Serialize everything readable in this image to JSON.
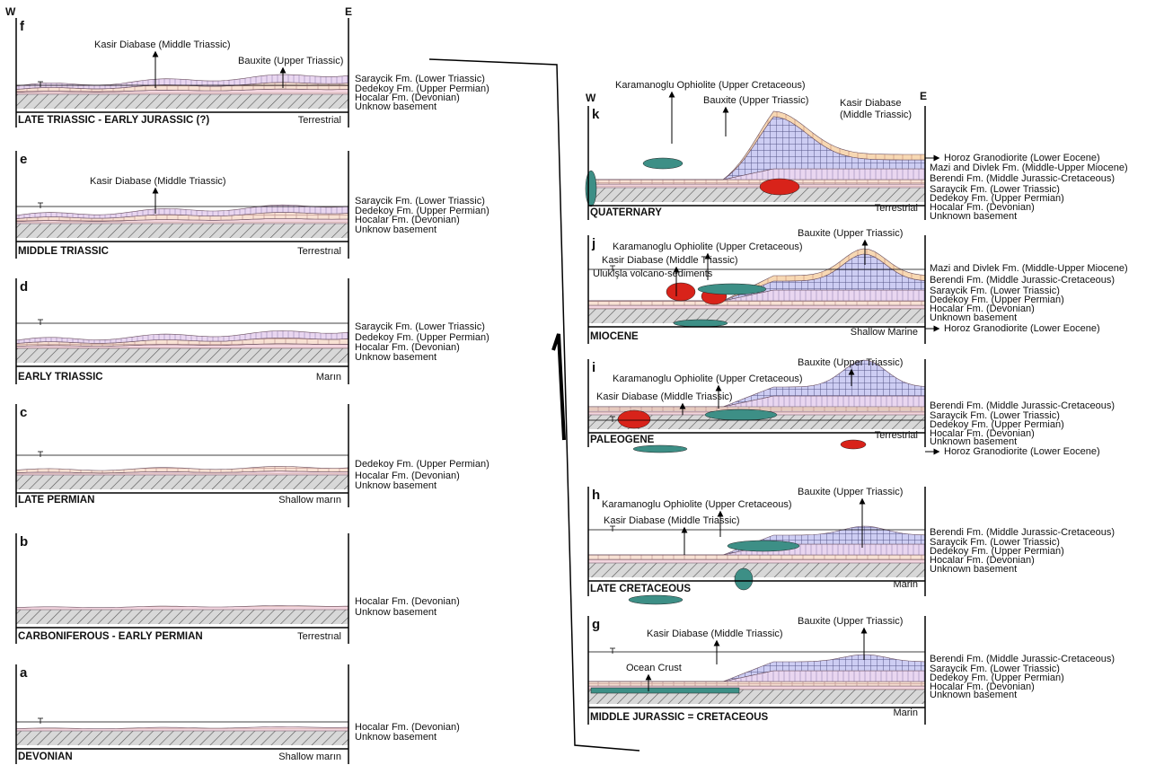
{
  "left_compass": {
    "west": "W",
    "east": "E"
  },
  "right_compass": {
    "west": "W",
    "east": "E"
  },
  "left_panels": [
    {
      "letter": "f",
      "period": "LATE TRIASSIC - EARLY JURASSIC (?)",
      "environment": "Terrestrial",
      "callouts": [
        "Kasir Diabase (Middle Triassic)",
        "Bauxite (Upper Triassic)"
      ],
      "units": [
        "Saraycik Fm. (Lower Triassic)",
        "Dedekoy Fm. (Upper Permian)",
        "Hocalar Fm. (Devonian)",
        "Unknow basement"
      ]
    },
    {
      "letter": "e",
      "period": "MIDDLE TRIASSIC",
      "environment": "Terrestrıal",
      "callouts": [
        "Kasir Diabase (Middle Triassic)"
      ],
      "units": [
        "Saraycik Fm. (Lower Triassic)",
        "Dedekoy Fm. (Upper Permian)",
        "Hocalar Fm. (Devonian)",
        "Unknow basement"
      ]
    },
    {
      "letter": "d",
      "period": "EARLY TRIASSIC",
      "environment": "Marın",
      "callouts": [],
      "units": [
        "Saraycik Fm. (Lower Triassic)",
        "Dedekoy Fm. (Upper Permian)",
        "Hocalar Fm. (Devonian)",
        "Unknow basement"
      ]
    },
    {
      "letter": "c",
      "period": "LATE PERMIAN",
      "environment": "Shallow marın",
      "callouts": [],
      "units": [
        "Dedekoy Fm. (Upper Permian)",
        "Hocalar Fm. (Devonian)",
        "Unknow basement"
      ]
    },
    {
      "letter": "b",
      "period": "CARBONIFEROUS - EARLY PERMIAN",
      "environment": "Terrestrıal",
      "callouts": [],
      "units": [
        "Hocalar Fm. (Devonian)",
        "Unknow basement"
      ]
    },
    {
      "letter": "a",
      "period": "DEVONIAN",
      "environment": "Shallow marın",
      "callouts": [],
      "units": [
        "Hocalar Fm. (Devonian)",
        "Unknow basement"
      ]
    }
  ],
  "right_panels": [
    {
      "letter": "k",
      "period": "QUATERNARY",
      "environment": "Terrestrial",
      "callouts": [
        "Karamanoglu Ophiolite (Upper Cretaceous)",
        "Bauxite (Upper Triassic)",
        "Kasir Diabase",
        "(Middle Triassic)"
      ],
      "units": [
        "Horoz Granodiorite (Lower Eocene)",
        "Mazi and Divlek Fm. (Middle-Upper Miocene)",
        "Berendi Fm. (Middle Jurassic-Cretaceous)",
        "Saraycik Fm. (Lower Triassic)",
        "Dedekoy Fm. (Upper Permian)",
        "Hocalar Fm. (Devonian)",
        "Unknown basement"
      ]
    },
    {
      "letter": "j",
      "period": "MIOCENE",
      "environment": "Shallow Marine",
      "callouts": [
        "Bauxite (Upper Triassic)",
        "Karamanoglu Ophiolite (Upper Cretaceous)",
        "Kasir Diabase  (Middle Triassic)",
        "Uluklşla volcano-sediments"
      ],
      "units": [
        "Mazi and Divlek Fm. (Middle-Upper Miocene)",
        "Berendi Fm. (Middle Jurassic-Cretaceous)",
        "Saraycik Fm. (Lower Triassic)",
        "Dedekoy Fm. (Upper Permian)",
        "Hocalar Fm. (Devonian)",
        "Unknown basement",
        "Horoz Granodiorite (Lower Eocene)"
      ]
    },
    {
      "letter": "i",
      "period": "PALEOGENE",
      "environment": "Terrestrial",
      "callouts": [
        "Bauxite (Upper Triassic)",
        "Karamanoglu Ophiolite (Upper Cretaceous)",
        "Kasir Diabase  (Middle Triassic)"
      ],
      "units": [
        "Berendi Fm. (Middle Jurassic-Cretaceous)",
        "Saraycik Fm. (Lower Triassic)",
        "Dedekoy Fm. (Upper Permian)",
        "Hocalar Fm. (Devonian)",
        "Unknown basement",
        "Horoz Granodiorite (Lower Eocene)"
      ]
    },
    {
      "letter": "h",
      "period": "LATE CRETACEOUS",
      "environment": "Marin",
      "callouts": [
        "Bauxite (Upper Triassic)",
        "Karamanoglu Ophiolite (Upper Cretaceous)",
        "Kasir Diabase  (Middle Triassic)"
      ],
      "units": [
        "Berendi Fm. (Middle Jurassic-Cretaceous)",
        "Saraycik Fm. (Lower Triassic)",
        "Dedekoy Fm. (Upper Permian)",
        "Hocalar Fm. (Devonian)",
        "Unknown basement"
      ]
    },
    {
      "letter": "g",
      "period": "MIDDLE JURASSIC = CRETACEOUS",
      "environment": "Marin",
      "callouts": [
        "Bauxite (Upper Triassic)",
        "Kasir Diabase  (Middle Triassic)",
        "Ocean Crust"
      ],
      "units": [
        "Berendi Fm. (Middle Jurassic-Cretaceous)",
        "Saraycik Fm. (Lower Triassic)",
        "Dedekoy Fm. (Upper Permian)",
        "Hocalar Fm. (Devonian)",
        "Unknown basement"
      ]
    }
  ]
}
